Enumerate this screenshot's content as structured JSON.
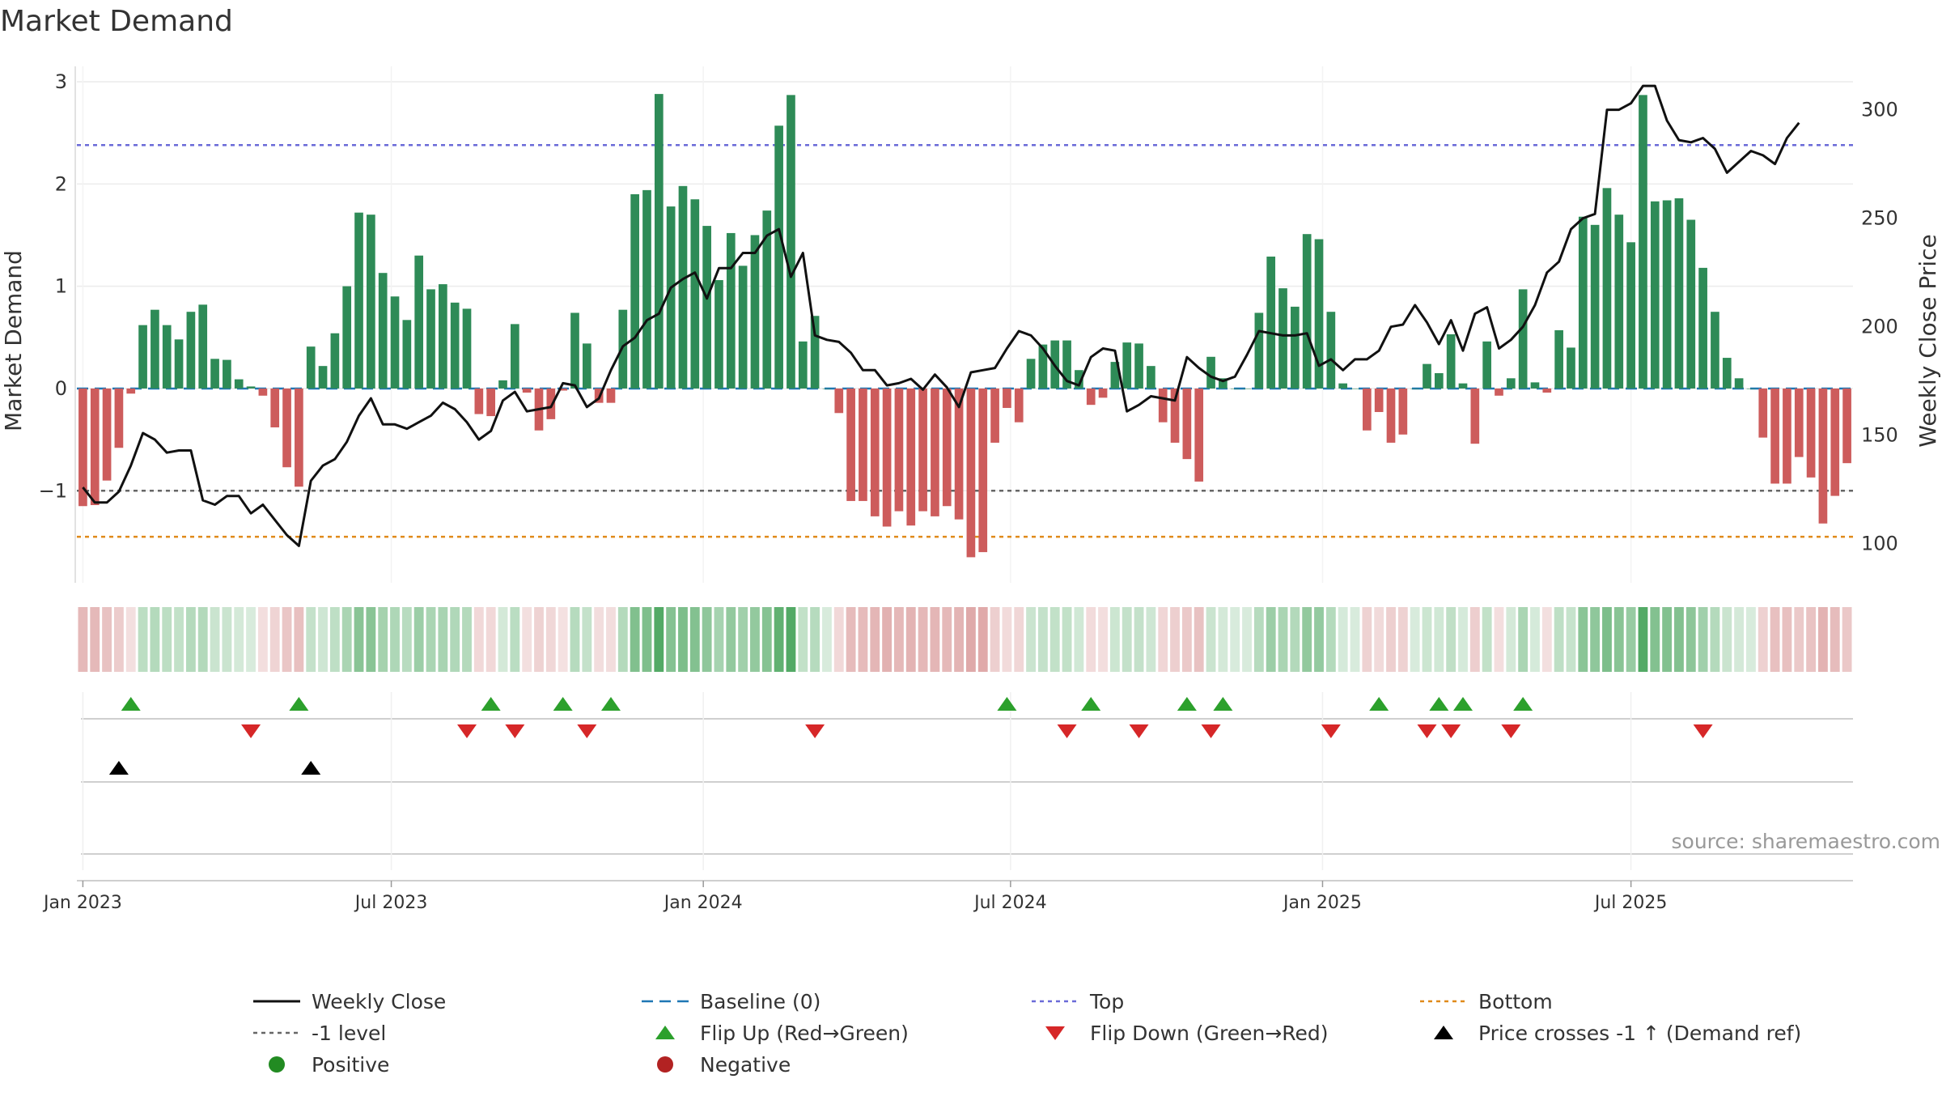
{
  "chart_data": {
    "type": "bar",
    "title": "Market Demand",
    "ylabel": "Market Demand",
    "y2label": "Weekly Close Price",
    "ylim": [
      -1.9,
      3.15
    ],
    "y2lim": [
      82.0,
      320.0
    ],
    "y_ticks": [
      -1,
      0,
      1,
      2,
      3
    ],
    "y_tick_labels": [
      "−1",
      "0",
      "1",
      "2",
      "3"
    ],
    "y2_ticks": [
      100,
      150,
      200,
      250,
      300
    ],
    "x_ticks": [
      {
        "week": 1,
        "label": "Jan 2023"
      },
      {
        "week": 26.7,
        "label": "Jul 2023"
      },
      {
        "week": 52.7,
        "label": "Jan 2024"
      },
      {
        "week": 78.3,
        "label": "Jul 2024"
      },
      {
        "week": 104.3,
        "label": "Jan 2025"
      },
      {
        "week": 130,
        "label": "Jul 2025"
      }
    ],
    "reference_lines": {
      "top": 2.38,
      "minus_one": -1.0,
      "bottom": -1.45,
      "baseline": 0
    },
    "demand": [
      -1.15,
      -1.14,
      -0.9,
      -0.58,
      -0.05,
      0.62,
      0.77,
      0.62,
      0.48,
      0.75,
      0.82,
      0.29,
      0.28,
      0.09,
      0.02,
      -0.07,
      -0.38,
      -0.77,
      -0.96,
      0.41,
      0.22,
      0.54,
      1.0,
      1.72,
      1.7,
      1.13,
      0.9,
      0.67,
      1.3,
      0.97,
      1.02,
      0.84,
      0.78,
      -0.25,
      -0.27,
      0.08,
      0.63,
      -0.04,
      -0.41,
      -0.3,
      -0.02,
      0.74,
      0.44,
      -0.14,
      -0.14,
      0.77,
      1.9,
      1.94,
      2.88,
      1.78,
      1.98,
      1.85,
      1.59,
      1.06,
      1.52,
      1.2,
      1.5,
      1.74,
      2.57,
      2.87,
      0.46,
      0.71,
      0.0,
      -0.24,
      -1.1,
      -1.1,
      -1.25,
      -1.35,
      -1.2,
      -1.34,
      -1.2,
      -1.25,
      -1.15,
      -1.28,
      -1.65,
      -1.6,
      -0.53,
      -0.19,
      -0.33,
      0.29,
      0.43,
      0.47,
      0.47,
      0.18,
      -0.16,
      -0.09,
      0.26,
      0.45,
      0.44,
      0.22,
      -0.33,
      -0.53,
      -0.69,
      -0.91,
      0.31,
      0.1,
      0.0,
      0.0,
      0.74,
      1.29,
      0.98,
      0.8,
      1.51,
      1.46,
      0.75,
      0.05,
      0.0,
      -0.41,
      -0.23,
      -0.53,
      -0.45,
      0.0,
      0.24,
      0.15,
      0.53,
      0.05,
      -0.54,
      0.46,
      -0.07,
      0.1,
      0.97,
      0.06,
      -0.04,
      0.57,
      0.4,
      1.68,
      1.6,
      1.96,
      1.7,
      1.43,
      2.87,
      1.83,
      1.84,
      1.86,
      1.65,
      1.18,
      0.75,
      0.3,
      0.1,
      0.0,
      -0.48,
      -0.93,
      -0.93,
      -0.67,
      -0.87,
      -1.32,
      -1.05,
      -0.73
    ],
    "weekly_close": [
      126,
      119,
      119,
      124,
      136,
      151,
      148,
      142,
      143,
      143,
      120,
      118,
      122,
      122,
      114,
      118,
      111,
      104,
      99,
      129,
      136,
      139,
      147,
      159,
      167,
      155,
      155,
      153,
      156,
      159,
      165,
      162,
      156,
      148,
      152,
      166,
      170,
      161,
      162,
      163,
      174,
      173,
      163,
      167,
      180,
      191,
      195,
      203,
      206,
      218,
      222,
      225,
      213,
      227,
      227,
      234,
      234,
      242,
      245,
      223,
      234,
      196,
      194,
      193,
      188,
      180,
      180,
      173,
      174,
      176,
      171,
      178,
      172,
      163,
      179,
      180,
      181,
      190,
      198,
      196,
      190,
      182,
      175,
      173,
      186,
      190,
      189,
      161,
      164,
      168,
      167,
      166,
      186,
      181,
      177,
      175,
      177,
      187,
      198,
      197,
      196,
      196,
      197,
      182,
      185,
      180,
      185,
      185,
      189,
      200,
      201,
      210,
      202,
      192,
      203,
      189,
      206,
      209,
      190,
      194,
      200,
      210,
      225,
      230,
      245,
      250,
      252,
      300,
      300,
      303,
      311,
      311,
      295,
      286,
      285,
      287,
      282,
      271,
      276,
      281,
      279,
      275,
      287,
      294
    ],
    "flip_up_weeks": [
      5,
      19,
      35,
      41,
      45,
      78,
      85,
      93,
      96,
      109,
      114,
      116,
      121
    ],
    "flip_down_weeks": [
      15,
      33,
      37,
      43,
      62,
      83,
      89,
      95,
      105,
      113,
      115,
      120,
      136
    ],
    "price_cross_weeks": [
      4,
      20
    ],
    "annotation": "source: sharemaestro.com",
    "legend": [
      {
        "label": "Weekly Close",
        "marker": "solid-line",
        "color": "#111111"
      },
      {
        "label": "Baseline (0)",
        "marker": "dash-line",
        "color": "#1f77b4"
      },
      {
        "label": "Top",
        "marker": "dot-line",
        "color": "#6a6ad8"
      },
      {
        "label": "Bottom",
        "marker": "dot-line",
        "color": "#e08a1a"
      },
      {
        "label": "-1 level",
        "marker": "dot-line",
        "color": "#666666"
      },
      {
        "label": "Flip Up (Red→Green)",
        "marker": "triangle-up",
        "color": "#2ca02c"
      },
      {
        "label": "Flip Down (Green→Red)",
        "marker": "triangle-down",
        "color": "#d62728"
      },
      {
        "label": "Price crosses -1 ↑ (Demand ref)",
        "marker": "triangle-up",
        "color": "#000000"
      },
      {
        "label": "Positive",
        "marker": "circle",
        "color": "#228b22"
      },
      {
        "label": "Negative",
        "marker": "circle",
        "color": "#b22222"
      }
    ],
    "colors": {
      "positive_bar": "#2e8b57",
      "negative_bar": "#cd5c5c",
      "positive_strip": "#3a9d4f",
      "negative_strip": "#c86a6a",
      "flip_up": "#2ca02c",
      "flip_down": "#d62728",
      "cross": "#000000",
      "price_line": "#111111"
    }
  }
}
